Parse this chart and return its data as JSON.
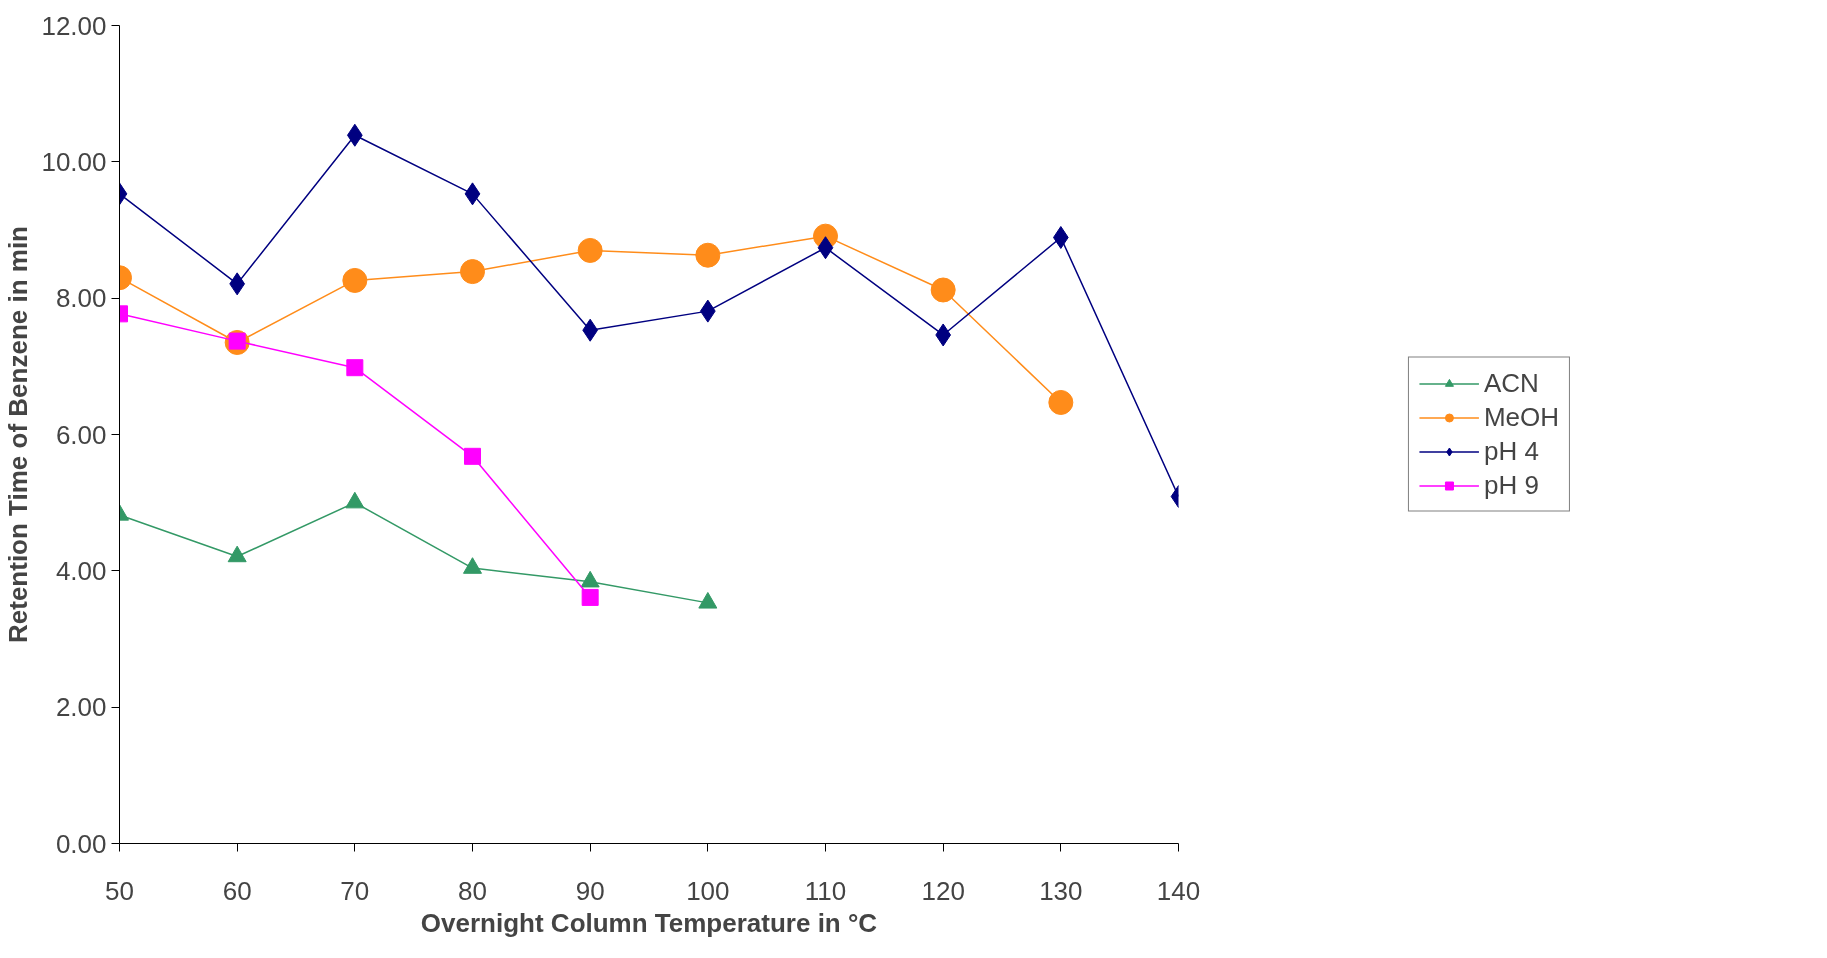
{
  "chart_data": {
    "type": "line",
    "xlabel": "Overnight Column Temperature in °C",
    "ylabel": "Retention Time of Benzene in min",
    "xlim": [
      50,
      140
    ],
    "xticks": [
      50,
      60,
      70,
      80,
      90,
      100,
      110,
      120,
      130,
      140
    ],
    "ylim": [
      0,
      12
    ],
    "yticks": [
      {
        "value": 0,
        "label": "0.00"
      },
      {
        "value": 2,
        "label": "2.00"
      },
      {
        "value": 4,
        "label": "4.00"
      },
      {
        "value": 6,
        "label": "6.00"
      },
      {
        "value": 8,
        "label": "8.00"
      },
      {
        "value": 10,
        "label": "10.00"
      },
      {
        "value": 12,
        "label": "12.00"
      }
    ],
    "grid": false,
    "legend": "right",
    "line_style": "solid",
    "series": [
      {
        "name": "ACN",
        "color": "#339966",
        "marker": "triangle",
        "x": [
          50,
          60,
          70,
          80,
          90,
          100
        ],
        "values": [
          4.82,
          4.21,
          5.0,
          4.04,
          3.84,
          3.53
        ]
      },
      {
        "name": "MeOH",
        "color": "#ff8c1a",
        "marker": "circle",
        "x": [
          50,
          60,
          70,
          80,
          90,
          100,
          110,
          120,
          130
        ],
        "values": [
          8.3,
          7.35,
          8.26,
          8.39,
          8.7,
          8.63,
          8.91,
          8.12,
          6.47
        ]
      },
      {
        "name": "pH 4",
        "color": "#000080",
        "marker": "diamond",
        "x": [
          50,
          60,
          70,
          80,
          90,
          100,
          110,
          120,
          130,
          140
        ],
        "values": [
          9.53,
          8.21,
          10.39,
          9.53,
          7.53,
          7.81,
          8.74,
          7.46,
          8.89,
          5.09
        ]
      },
      {
        "name": "pH 9",
        "color": "#ff00ff",
        "marker": "square",
        "x": [
          50,
          60,
          70,
          80,
          90
        ],
        "values": [
          7.77,
          7.37,
          6.98,
          5.68,
          3.61
        ]
      }
    ]
  }
}
